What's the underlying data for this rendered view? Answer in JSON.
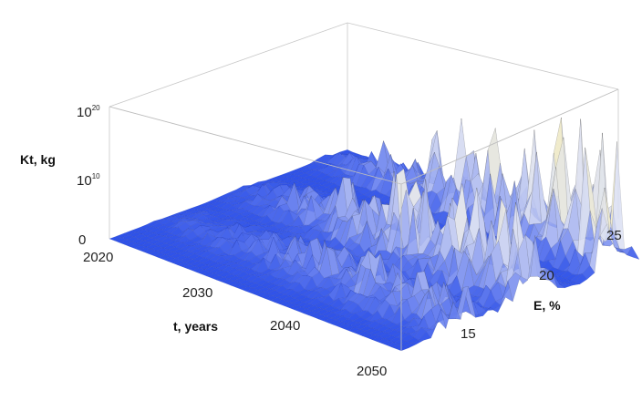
{
  "chart_data": {
    "type": "surface3d",
    "title": "",
    "xlabel": "t, years",
    "ylabel": "E, %",
    "zlabel": "Kt, kg",
    "x_range": [
      2020,
      2050
    ],
    "y_range": [
      10,
      26
    ],
    "z_scale": "log",
    "z_range_exponent": [
      0,
      20
    ],
    "x_ticks": [
      {
        "value": 2020,
        "label": "2020"
      },
      {
        "value": 2030,
        "label": "2030"
      },
      {
        "value": 2040,
        "label": "2040"
      },
      {
        "value": 2050,
        "label": "2050"
      }
    ],
    "y_ticks": [
      {
        "value": 15,
        "label": "15"
      },
      {
        "value": 20,
        "label": "20"
      },
      {
        "value": 25,
        "label": "25"
      }
    ],
    "z_ticks": [
      {
        "value": 0,
        "label": "0",
        "exponent": ""
      },
      {
        "value": 10,
        "label": "10",
        "exponent": "10"
      },
      {
        "value": 20,
        "label": "10",
        "exponent": "20"
      }
    ],
    "surface_colors": [
      "#2f52e8",
      "#6f86f0",
      "#dfe3f2",
      "#f4edc2",
      "#c8b04a",
      "#c23a2c"
    ],
    "grid": true
  }
}
